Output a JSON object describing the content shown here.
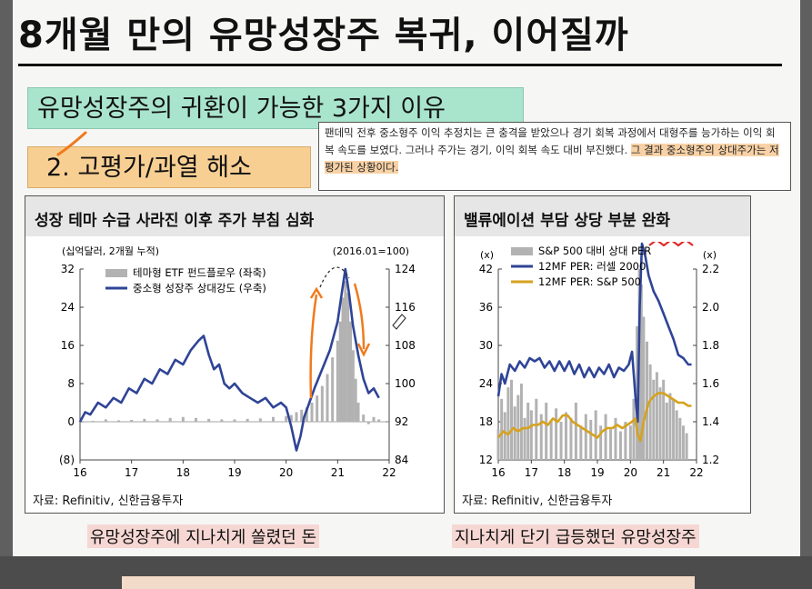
{
  "title": "8개월 만의 유망성장주 복귀, 이어질까",
  "highlight_main": "유망성장주의 귀환이 가능한 3가지 이유",
  "highlight_reason": "2. 고평가/과열 해소",
  "note": {
    "text": "팬데믹 전후 중소형주 이익 추정치는 큰 충격을 받았으나 경기 회복 과정에서 대형주를 능가하는 이익 회복 속도를 보였다. 그러나 주가는 경기, 이익 회복 속도 대비 부진했다.",
    "highlight": "그 결과 중소형주의 상대주가는 저평가된 상황이다."
  },
  "colors": {
    "navy": "#2f4496",
    "gray": "#b2b2b2",
    "gold": "#d6a21e",
    "orange": "#f07a1e",
    "red": "#e02a2a"
  },
  "captions": {
    "left": "유망성장주에 지나치게 쏠렸던 돈",
    "right": "지나치게 단기 급등했던 유망성장주"
  },
  "chart_data": [
    {
      "type": "bar",
      "title": "성장 테마 수급 사라진 이후 주가 부침 심화",
      "left_unit": "(십억달러, 2개월 누적)",
      "right_unit": "(2016.01=100)",
      "xticks": [
        "16",
        "17",
        "18",
        "19",
        "20",
        "21",
        "22"
      ],
      "ylim_left": [
        -8,
        32
      ],
      "yticks_left": [
        "(8)",
        "0",
        "8",
        "16",
        "24",
        "32"
      ],
      "ylim_right": [
        84,
        124
      ],
      "yticks_right": [
        "84",
        "92",
        "100",
        "108",
        "116",
        "124"
      ],
      "source": "자료: Refinitiv, 신한금융투자",
      "series": [
        {
          "name": "테마형 ETF 펀드플로우 (좌축)",
          "kind": "bar",
          "axis": "left",
          "x": [
            2016.0,
            2016.25,
            2016.5,
            2016.75,
            2017.0,
            2017.25,
            2017.5,
            2017.75,
            2018.0,
            2018.25,
            2018.5,
            2018.75,
            2019.0,
            2019.25,
            2019.5,
            2019.75,
            2020.0,
            2020.1,
            2020.2,
            2020.3,
            2020.4,
            2020.5,
            2020.6,
            2020.7,
            2020.8,
            2020.9,
            2021.0,
            2021.05,
            2021.1,
            2021.15,
            2021.2,
            2021.25,
            2021.3,
            2021.35,
            2021.4,
            2021.5,
            2021.6,
            2021.7,
            2021.8
          ],
          "values": [
            0.2,
            0.2,
            0.5,
            0.3,
            0.4,
            0.6,
            0.5,
            0.8,
            1.0,
            0.8,
            0.6,
            0.5,
            0.5,
            0.6,
            0.7,
            1.0,
            1.2,
            1.4,
            2.0,
            2.5,
            3.0,
            4.0,
            5.5,
            7.5,
            10.0,
            13.5,
            17.0,
            21.0,
            26.0,
            29.5,
            27.0,
            21.0,
            15.0,
            9.0,
            4.0,
            1.5,
            -0.5,
            1.0,
            0.5
          ]
        },
        {
          "name": "중소형 성장주 상대강도 (우축)",
          "kind": "line",
          "axis": "right",
          "x": [
            2016.0,
            2016.1,
            2016.2,
            2016.35,
            2016.5,
            2016.65,
            2016.8,
            2016.95,
            2017.1,
            2017.25,
            2017.4,
            2017.55,
            2017.7,
            2017.85,
            2018.0,
            2018.15,
            2018.3,
            2018.4,
            2018.5,
            2018.6,
            2018.7,
            2018.8,
            2018.9,
            2019.0,
            2019.15,
            2019.3,
            2019.45,
            2019.6,
            2019.75,
            2019.9,
            2020.0,
            2020.1,
            2020.2,
            2020.28,
            2020.35,
            2020.45,
            2020.55,
            2020.7,
            2020.85,
            2021.0,
            2021.08,
            2021.15,
            2021.22,
            2021.3,
            2021.4,
            2021.5,
            2021.6,
            2021.7,
            2021.8
          ],
          "values": [
            92,
            94,
            93.5,
            96,
            95,
            97,
            96,
            99,
            98,
            101,
            100,
            103,
            102,
            105,
            104,
            107,
            109,
            110,
            106,
            103,
            104,
            100,
            99,
            100,
            98,
            97,
            96,
            97,
            95,
            96,
            95,
            91,
            86,
            89,
            93,
            96,
            99,
            103,
            107,
            113,
            119,
            124,
            119,
            112,
            106,
            101,
            98,
            99,
            97
          ]
        }
      ],
      "annotations": [
        "arrow-up",
        "arrow-down",
        "peak-dashed-arc"
      ]
    },
    {
      "type": "line",
      "title": "밸류에이션 부담 상당 부분 완화",
      "left_unit": "(x)",
      "right_unit": "(x)",
      "xticks": [
        "16",
        "17",
        "18",
        "19",
        "20",
        "21",
        "22"
      ],
      "ylim_left": [
        12,
        42
      ],
      "yticks_left": [
        "12",
        "18",
        "24",
        "30",
        "36",
        "42"
      ],
      "ylim_right": [
        1.2,
        2.2
      ],
      "yticks_right": [
        "1.2",
        "1.4",
        "1.6",
        "1.8",
        "2.0",
        "2.2"
      ],
      "source": "자료: Refinitiv, 신한금융투자",
      "series": [
        {
          "name": "S&P 500 대비 상대 PER",
          "kind": "bar",
          "axis": "right",
          "x": [
            2016.0,
            2016.1,
            2016.2,
            2016.3,
            2016.4,
            2016.5,
            2016.6,
            2016.7,
            2016.8,
            2016.9,
            2017.0,
            2017.15,
            2017.3,
            2017.45,
            2017.6,
            2017.75,
            2017.9,
            2018.05,
            2018.2,
            2018.35,
            2018.5,
            2018.65,
            2018.8,
            2018.95,
            2019.1,
            2019.25,
            2019.4,
            2019.55,
            2019.7,
            2019.85,
            2020.0,
            2020.1,
            2020.2,
            2020.27,
            2020.33,
            2020.4,
            2020.5,
            2020.6,
            2020.7,
            2020.8,
            2020.9,
            2021.0,
            2021.1,
            2021.2,
            2021.3,
            2021.4,
            2021.5,
            2021.6,
            2021.7
          ],
          "values": [
            1.36,
            1.52,
            1.45,
            1.58,
            1.62,
            1.48,
            1.54,
            1.6,
            1.42,
            1.5,
            1.46,
            1.52,
            1.44,
            1.5,
            1.41,
            1.47,
            1.4,
            1.45,
            1.42,
            1.5,
            1.38,
            1.44,
            1.41,
            1.46,
            1.38,
            1.44,
            1.36,
            1.42,
            1.35,
            1.4,
            1.38,
            1.52,
            1.9,
            2.2,
            2.12,
            1.95,
            1.82,
            1.7,
            1.62,
            1.66,
            1.58,
            1.62,
            1.5,
            1.55,
            1.52,
            1.46,
            1.42,
            1.38,
            1.34
          ]
        },
        {
          "name": "12MF PER: 러셀 2000",
          "kind": "line",
          "axis": "left",
          "x": [
            2016.0,
            2016.1,
            2016.2,
            2016.35,
            2016.5,
            2016.65,
            2016.8,
            2016.95,
            2017.1,
            2017.25,
            2017.4,
            2017.55,
            2017.7,
            2017.85,
            2018.0,
            2018.15,
            2018.3,
            2018.45,
            2018.6,
            2018.75,
            2018.9,
            2019.05,
            2019.2,
            2019.35,
            2019.5,
            2019.65,
            2019.8,
            2019.95,
            2020.05,
            2020.15,
            2020.22,
            2020.28,
            2020.35,
            2020.45,
            2020.55,
            2020.7,
            2020.85,
            2021.0,
            2021.15,
            2021.3,
            2021.45,
            2021.6,
            2021.75,
            2021.85
          ],
          "values": [
            22,
            25.5,
            24,
            27,
            26,
            27.5,
            26.5,
            28,
            27.5,
            28,
            26.5,
            27.5,
            26,
            27.5,
            26,
            27.5,
            25.5,
            27,
            25,
            26.5,
            25,
            26.5,
            25.5,
            27,
            25,
            26.5,
            26,
            27,
            29,
            22,
            18,
            36,
            46,
            44,
            41,
            38.5,
            37,
            35,
            33,
            31,
            28.5,
            28,
            27,
            27
          ]
        },
        {
          "name": "12MF PER: S&P 500",
          "kind": "line",
          "axis": "left",
          "x": [
            2016.0,
            2016.15,
            2016.3,
            2016.45,
            2016.6,
            2016.75,
            2016.9,
            2017.05,
            2017.2,
            2017.35,
            2017.5,
            2017.65,
            2017.8,
            2017.95,
            2018.1,
            2018.25,
            2018.4,
            2018.55,
            2018.7,
            2018.85,
            2019.0,
            2019.15,
            2019.3,
            2019.45,
            2019.6,
            2019.75,
            2019.9,
            2020.05,
            2020.15,
            2020.22,
            2020.3,
            2020.4,
            2020.55,
            2020.7,
            2020.85,
            2021.0,
            2021.15,
            2021.3,
            2021.45,
            2021.6,
            2021.75,
            2021.85
          ],
          "values": [
            15.5,
            16.5,
            16,
            17,
            16.5,
            17,
            17,
            17.5,
            17.5,
            18,
            17.5,
            18.5,
            18,
            19,
            19,
            18,
            17.5,
            17,
            16.5,
            16,
            15.5,
            16.5,
            17,
            17,
            17.5,
            17,
            17.5,
            18,
            18.5,
            16,
            15,
            18,
            21,
            22,
            22.5,
            22.5,
            22,
            21.5,
            21,
            21,
            20.5,
            20.5
          ]
        }
      ],
      "annotations": [
        "red-squiggle-underline"
      ]
    }
  ]
}
